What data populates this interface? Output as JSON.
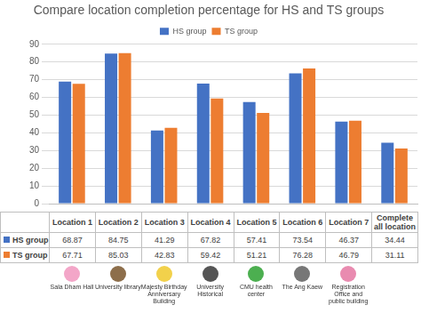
{
  "chart_data": {
    "type": "bar",
    "title": "Compare location completion percentage for HS and TS groups",
    "categories": [
      "Location 1",
      "Location 2",
      "Location 3",
      "Location 4",
      "Location 5",
      "Location 6",
      "Location 7",
      "Complete all location"
    ],
    "series": [
      {
        "name": "HS group",
        "color": "#4472c4",
        "values": [
          68.87,
          84.75,
          41.29,
          67.82,
          57.41,
          73.54,
          46.37,
          34.44
        ]
      },
      {
        "name": "TS group",
        "color": "#ed7d31",
        "values": [
          67.71,
          85.03,
          42.83,
          59.42,
          51.21,
          76.28,
          46.79,
          31.11
        ]
      }
    ],
    "ylim": [
      0,
      90
    ],
    "yticks": [
      0,
      10,
      20,
      30,
      40,
      50,
      60,
      70,
      80,
      90
    ],
    "grid": true,
    "legend": "top"
  },
  "icon_captions": [
    "Sala Dham Hall",
    "University library",
    "Majesty Birthday Anniversary Building",
    "University Historical",
    "CMU health center",
    "The Ang Kaew",
    "Registration Office and public building"
  ]
}
